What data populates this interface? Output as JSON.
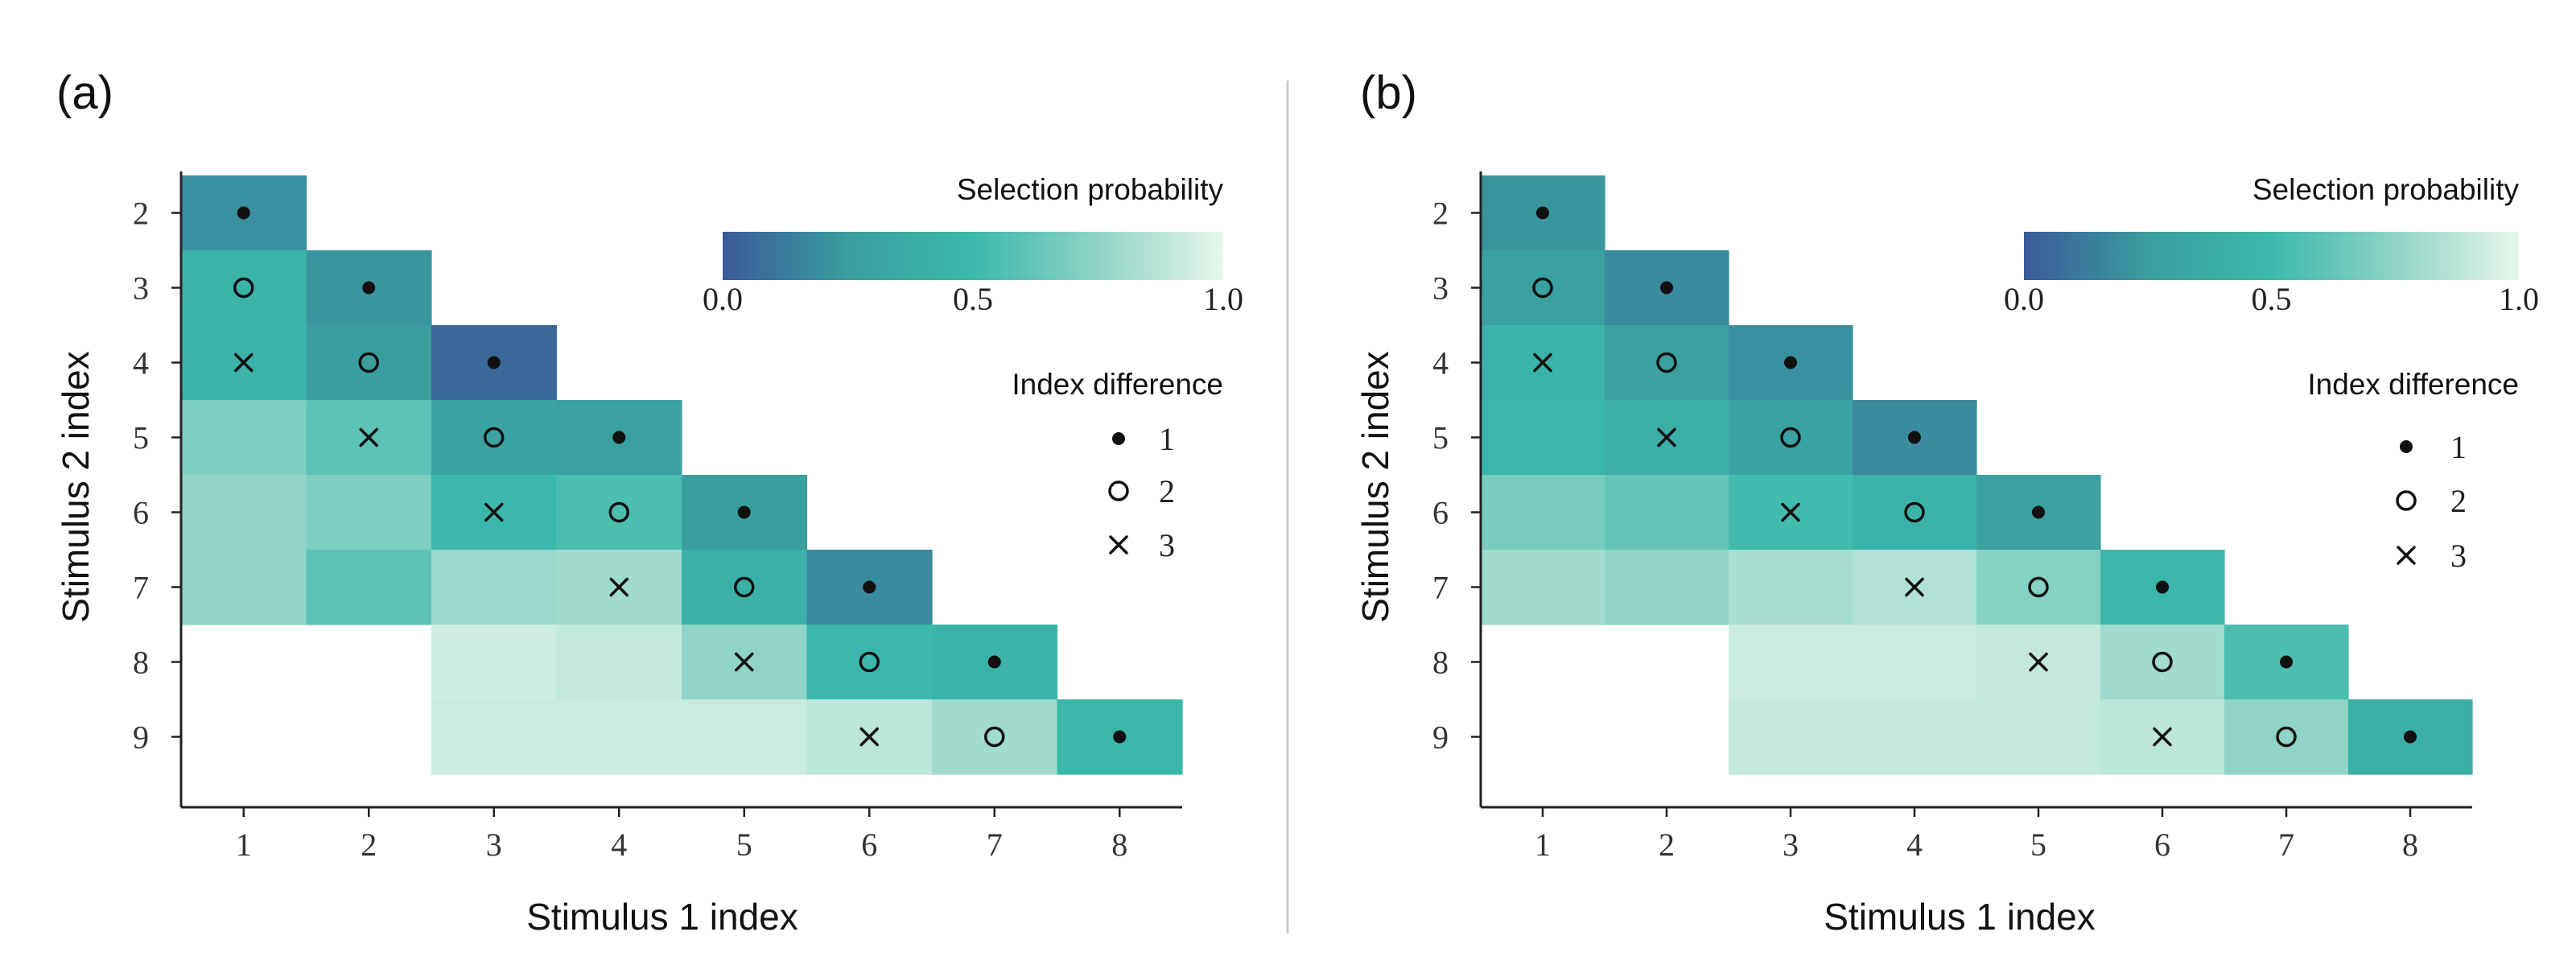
{
  "chart_data": [
    {
      "type": "heatmap",
      "panel_label": "(a)",
      "xlabel": "Stimulus 1 index",
      "ylabel": "Stimulus 2 index",
      "x_categories": [
        1,
        2,
        3,
        4,
        5,
        6,
        7,
        8
      ],
      "y_categories": [
        2,
        3,
        4,
        5,
        6,
        7,
        8,
        9
      ],
      "colorbar": {
        "title": "Selection probability",
        "range": [
          0.0,
          1.0
        ],
        "tick_labels": [
          "0.0",
          "0.5",
          "1.0"
        ]
      },
      "marker_legend": {
        "title": "Index difference",
        "entries": [
          {
            "label": "1",
            "symbol": "dot"
          },
          {
            "label": "2",
            "symbol": "circle"
          },
          {
            "label": "3",
            "symbol": "cross"
          }
        ]
      },
      "cells": [
        {
          "x": 1,
          "y": 2,
          "value": 0.2
        },
        {
          "x": 1,
          "y": 3,
          "value": 0.45
        },
        {
          "x": 2,
          "y": 3,
          "value": 0.22
        },
        {
          "x": 1,
          "y": 4,
          "value": 0.45
        },
        {
          "x": 2,
          "y": 4,
          "value": 0.25
        },
        {
          "x": 3,
          "y": 4,
          "value": 0.05
        },
        {
          "x": 1,
          "y": 5,
          "value": 0.7
        },
        {
          "x": 2,
          "y": 5,
          "value": 0.6
        },
        {
          "x": 3,
          "y": 5,
          "value": 0.3
        },
        {
          "x": 4,
          "y": 5,
          "value": 0.28
        },
        {
          "x": 1,
          "y": 6,
          "value": 0.75
        },
        {
          "x": 2,
          "y": 6,
          "value": 0.7
        },
        {
          "x": 3,
          "y": 6,
          "value": 0.5
        },
        {
          "x": 4,
          "y": 6,
          "value": 0.55
        },
        {
          "x": 5,
          "y": 6,
          "value": 0.25
        },
        {
          "x": 1,
          "y": 7,
          "value": 0.75
        },
        {
          "x": 2,
          "y": 7,
          "value": 0.6
        },
        {
          "x": 3,
          "y": 7,
          "value": 0.78
        },
        {
          "x": 4,
          "y": 7,
          "value": 0.8
        },
        {
          "x": 5,
          "y": 7,
          "value": 0.42
        },
        {
          "x": 6,
          "y": 7,
          "value": 0.18
        },
        {
          "x": 3,
          "y": 8,
          "value": 0.93
        },
        {
          "x": 4,
          "y": 8,
          "value": 0.9
        },
        {
          "x": 5,
          "y": 8,
          "value": 0.75
        },
        {
          "x": 6,
          "y": 8,
          "value": 0.5
        },
        {
          "x": 7,
          "y": 8,
          "value": 0.45
        },
        {
          "x": 3,
          "y": 9,
          "value": 0.92
        },
        {
          "x": 4,
          "y": 9,
          "value": 0.92
        },
        {
          "x": 5,
          "y": 9,
          "value": 0.92
        },
        {
          "x": 6,
          "y": 9,
          "value": 0.88
        },
        {
          "x": 7,
          "y": 9,
          "value": 0.8
        },
        {
          "x": 8,
          "y": 9,
          "value": 0.48
        }
      ]
    },
    {
      "type": "heatmap",
      "panel_label": "(b)",
      "xlabel": "Stimulus 1 index",
      "ylabel": "Stimulus 2 index",
      "x_categories": [
        1,
        2,
        3,
        4,
        5,
        6,
        7,
        8
      ],
      "y_categories": [
        2,
        3,
        4,
        5,
        6,
        7,
        8,
        9
      ],
      "colorbar": {
        "title": "Selection probability",
        "range": [
          0.0,
          1.0
        ],
        "tick_labels": [
          "0.0",
          "0.5",
          "1.0"
        ]
      },
      "marker_legend": {
        "title": "Index difference",
        "entries": [
          {
            "label": "1",
            "symbol": "dot"
          },
          {
            "label": "2",
            "symbol": "circle"
          },
          {
            "label": "3",
            "symbol": "cross"
          }
        ]
      },
      "cells": [
        {
          "x": 1,
          "y": 2,
          "value": 0.22
        },
        {
          "x": 1,
          "y": 3,
          "value": 0.28
        },
        {
          "x": 2,
          "y": 3,
          "value": 0.18
        },
        {
          "x": 1,
          "y": 4,
          "value": 0.45
        },
        {
          "x": 2,
          "y": 4,
          "value": 0.28
        },
        {
          "x": 3,
          "y": 4,
          "value": 0.2
        },
        {
          "x": 1,
          "y": 5,
          "value": 0.48
        },
        {
          "x": 2,
          "y": 5,
          "value": 0.4
        },
        {
          "x": 3,
          "y": 5,
          "value": 0.3
        },
        {
          "x": 4,
          "y": 5,
          "value": 0.18
        },
        {
          "x": 1,
          "y": 6,
          "value": 0.68
        },
        {
          "x": 2,
          "y": 6,
          "value": 0.62
        },
        {
          "x": 3,
          "y": 6,
          "value": 0.52
        },
        {
          "x": 4,
          "y": 6,
          "value": 0.45
        },
        {
          "x": 5,
          "y": 6,
          "value": 0.28
        },
        {
          "x": 1,
          "y": 7,
          "value": 0.8
        },
        {
          "x": 2,
          "y": 7,
          "value": 0.75
        },
        {
          "x": 3,
          "y": 7,
          "value": 0.82
        },
        {
          "x": 4,
          "y": 7,
          "value": 0.85
        },
        {
          "x": 5,
          "y": 7,
          "value": 0.72
        },
        {
          "x": 6,
          "y": 7,
          "value": 0.48
        },
        {
          "x": 3,
          "y": 8,
          "value": 0.92
        },
        {
          "x": 4,
          "y": 8,
          "value": 0.92
        },
        {
          "x": 5,
          "y": 8,
          "value": 0.9
        },
        {
          "x": 6,
          "y": 8,
          "value": 0.8
        },
        {
          "x": 7,
          "y": 8,
          "value": 0.55
        },
        {
          "x": 3,
          "y": 9,
          "value": 0.9
        },
        {
          "x": 4,
          "y": 9,
          "value": 0.9
        },
        {
          "x": 5,
          "y": 9,
          "value": 0.9
        },
        {
          "x": 6,
          "y": 9,
          "value": 0.88
        },
        {
          "x": 7,
          "y": 9,
          "value": 0.75
        },
        {
          "x": 8,
          "y": 9,
          "value": 0.4
        }
      ]
    }
  ],
  "colorscale": [
    "#3a5a99",
    "#3a9e9f",
    "#3bb8ab",
    "#8fd4c6",
    "#e6f7ec"
  ]
}
